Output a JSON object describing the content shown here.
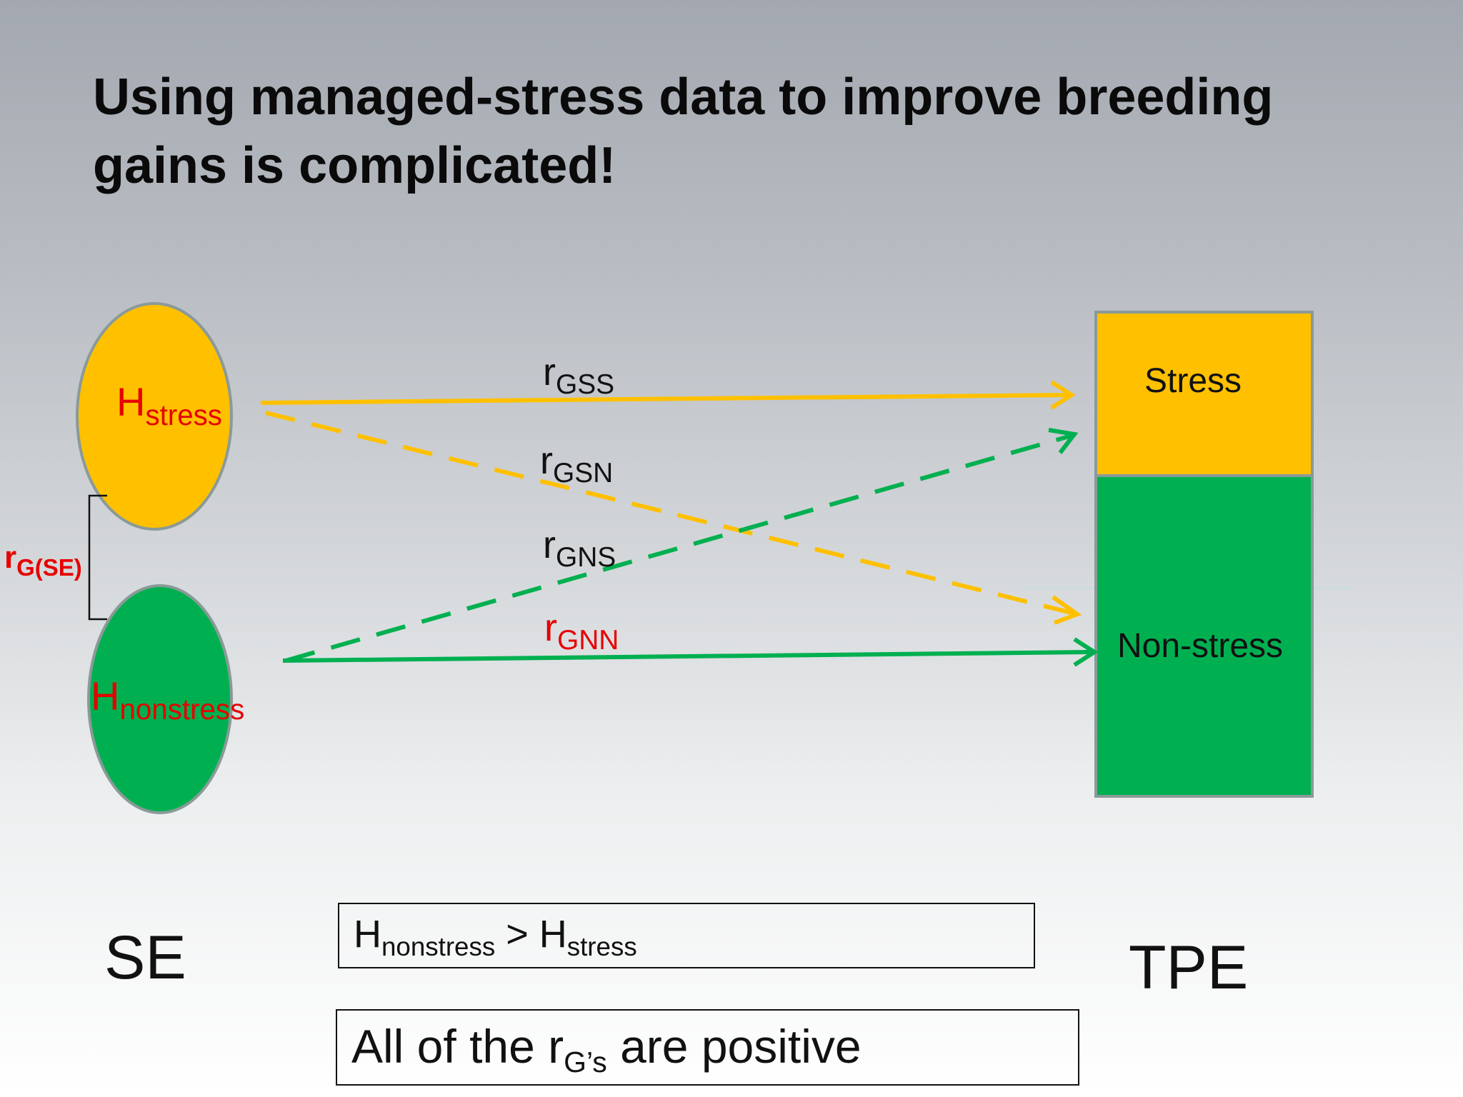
{
  "title": "Using managed-stress data to improve breeding gains is complicated!",
  "colors": {
    "stress": "#ffc000",
    "nonstress": "#00b050",
    "label_red": "#e60000",
    "outline": "#8a9a98"
  },
  "se_ellipses": {
    "stress": {
      "H": "H",
      "sub": "stress"
    },
    "nonstress": {
      "H": "H",
      "sub": "nonstress"
    }
  },
  "correlation_bracket": {
    "r": "r",
    "sub": "G(SE)"
  },
  "arrows": [
    {
      "id": "gss",
      "r": "r",
      "sub": "GSS",
      "style": "solid",
      "color": "stress",
      "from": "stress",
      "to": "stress"
    },
    {
      "id": "gsn",
      "r": "r",
      "sub": "GSN",
      "style": "dashed",
      "color": "stress",
      "from": "stress",
      "to": "nonstress"
    },
    {
      "id": "gns",
      "r": "r",
      "sub": "GNS",
      "style": "dashed",
      "color": "nonstress",
      "from": "nonstress",
      "to": "stress"
    },
    {
      "id": "gnn",
      "r": "r",
      "sub": "GNN",
      "style": "solid",
      "color": "nonstress",
      "from": "nonstress",
      "to": "nonstress"
    }
  ],
  "tpe_box": {
    "stress_label": "Stress",
    "nonstress_label": "Non-stress"
  },
  "se_label": "SE",
  "tpe_label": "TPE",
  "note1": {
    "h1": "H",
    "s1": "nonstress",
    "op": " > ",
    "h2": "H",
    "s2": "stress"
  },
  "note2": {
    "pre": "All of the r",
    "sub": "G’s",
    "post": " are positive"
  }
}
